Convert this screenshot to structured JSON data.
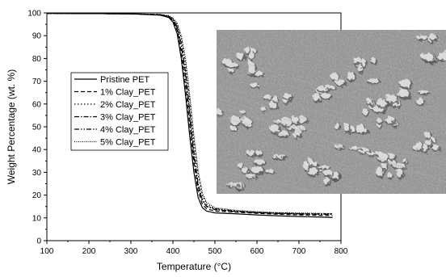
{
  "chart_data": {
    "type": "line",
    "title": "",
    "xlabel": "Temperature (°C)",
    "ylabel": "Weight Percentage (wt. %)",
    "xlim": [
      100,
      800
    ],
    "ylim": [
      0,
      100
    ],
    "xticks": [
      100,
      200,
      300,
      400,
      500,
      600,
      700,
      800
    ],
    "yticks": [
      0,
      10,
      20,
      30,
      40,
      50,
      60,
      70,
      80,
      90,
      100
    ],
    "grid": false,
    "legend_position": "center-left",
    "inset": "SEM micrograph of clay particles (top-right)",
    "series": [
      {
        "name": "Pristine PET",
        "dash": "solid",
        "x": [
          100,
          300,
          370,
          390,
          400,
          410,
          420,
          430,
          440,
          450,
          460,
          470,
          480,
          500,
          550,
          600,
          650,
          700,
          780
        ],
        "y": [
          99.8,
          99.6,
          99.0,
          98.0,
          96.0,
          91.0,
          80.0,
          64.0,
          46.0,
          30.0,
          19.0,
          14.5,
          13.0,
          12.2,
          11.8,
          11.3,
          10.9,
          10.6,
          10.2
        ]
      },
      {
        "name": "1% Clay_PET",
        "dash": "dashed",
        "x": [
          100,
          300,
          370,
          390,
          400,
          410,
          420,
          430,
          440,
          450,
          460,
          470,
          480,
          500,
          550,
          600,
          650,
          700,
          780
        ],
        "y": [
          99.8,
          99.6,
          99.1,
          98.2,
          96.6,
          92.5,
          83.0,
          68.0,
          51.0,
          34.0,
          22.0,
          16.0,
          14.0,
          13.0,
          12.5,
          12.0,
          11.6,
          11.3,
          11.0
        ]
      },
      {
        "name": "2% Clay_PET",
        "dash": "dotted",
        "x": [
          100,
          300,
          370,
          390,
          400,
          410,
          420,
          430,
          440,
          450,
          460,
          470,
          480,
          500,
          550,
          600,
          650,
          700,
          780
        ],
        "y": [
          99.8,
          99.6,
          99.3,
          98.7,
          97.6,
          95.0,
          89.0,
          78.0,
          62.0,
          44.0,
          29.0,
          20.0,
          16.0,
          14.0,
          13.0,
          12.5,
          12.2,
          12.0,
          11.8
        ]
      },
      {
        "name": "3% Clay_PET",
        "dash": "dashdot",
        "x": [
          100,
          300,
          370,
          390,
          400,
          410,
          420,
          430,
          440,
          450,
          460,
          470,
          480,
          500,
          550,
          600,
          650,
          700,
          780
        ],
        "y": [
          99.8,
          99.6,
          99.2,
          98.5,
          97.2,
          94.0,
          86.5,
          74.0,
          57.0,
          39.0,
          25.0,
          18.0,
          15.0,
          13.6,
          12.8,
          12.3,
          12.0,
          11.8,
          11.6
        ]
      },
      {
        "name": "4% Clay_PET",
        "dash": "dashdotdot",
        "x": [
          100,
          300,
          370,
          390,
          400,
          410,
          420,
          430,
          440,
          450,
          460,
          470,
          480,
          500,
          550,
          600,
          650,
          700,
          780
        ],
        "y": [
          99.8,
          99.6,
          99.2,
          98.4,
          97.0,
          93.5,
          85.5,
          72.5,
          55.0,
          37.0,
          24.0,
          17.5,
          15.2,
          14.0,
          13.0,
          12.4,
          12.0,
          11.7,
          11.5
        ]
      },
      {
        "name": "5% Clay_PET",
        "dash": "shortdot",
        "x": [
          100,
          300,
          370,
          390,
          400,
          410,
          420,
          430,
          440,
          450,
          460,
          470,
          480,
          500,
          550,
          600,
          650,
          700,
          780
        ],
        "y": [
          99.8,
          99.6,
          99.3,
          98.8,
          97.8,
          95.5,
          90.0,
          80.0,
          64.0,
          46.0,
          31.0,
          21.0,
          16.8,
          14.5,
          13.3,
          12.7,
          12.3,
          12.1,
          11.9
        ]
      }
    ]
  }
}
